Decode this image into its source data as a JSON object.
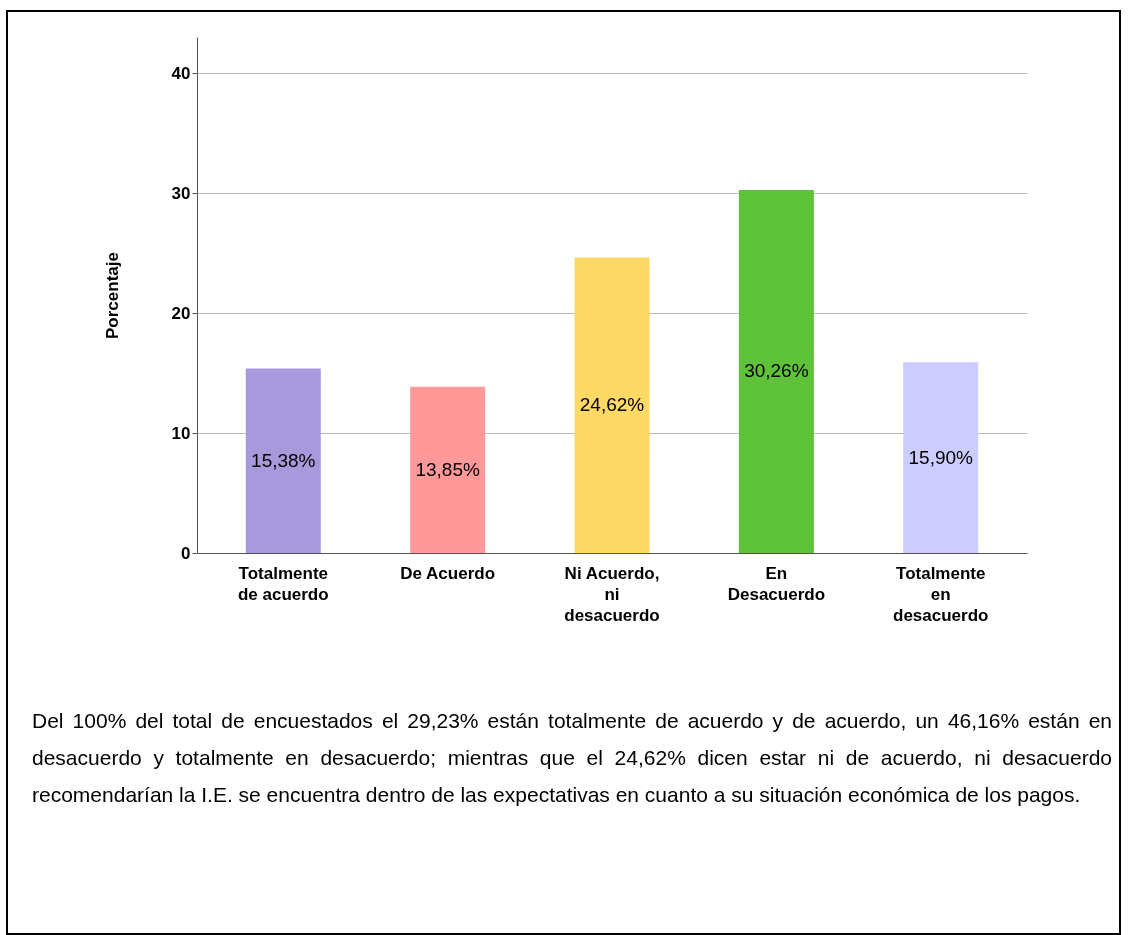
{
  "chart_data": {
    "type": "bar",
    "ylabel": "Porcentaje",
    "categories": [
      "Totalmente de acuerdo",
      "De Acuerdo",
      "Ni Acuerdo, ni desacuerdo",
      "En Desacuerdo",
      "Totalmente en desacuerdo"
    ],
    "values": [
      15.38,
      13.85,
      24.62,
      30.26,
      15.9
    ],
    "colors": [
      "#a898dc",
      "#ff9999",
      "#ffd966",
      "#5ec23a",
      "#ccccff"
    ],
    "value_labels": [
      "15,38%",
      "13,85%",
      "24,62%",
      "30,26%",
      "15,90%"
    ],
    "ylim": [
      0,
      43
    ],
    "yticks": [
      0,
      10,
      20,
      30,
      40
    ],
    "grid": "y",
    "annotations": [
      "Del 100% del total de encuestados el 29,23% están totalmente de acuerdo y de acuerdo, un 46,16% están en desacuerdo y totalmente en desacuerdo; mientras que el 24,62% dicen estar ni de acuerdo, ni desacuerdo recomendarían la I.E. se encuentra dentro de las expectativas en cuanto a su situación económica de los pagos."
    ]
  }
}
